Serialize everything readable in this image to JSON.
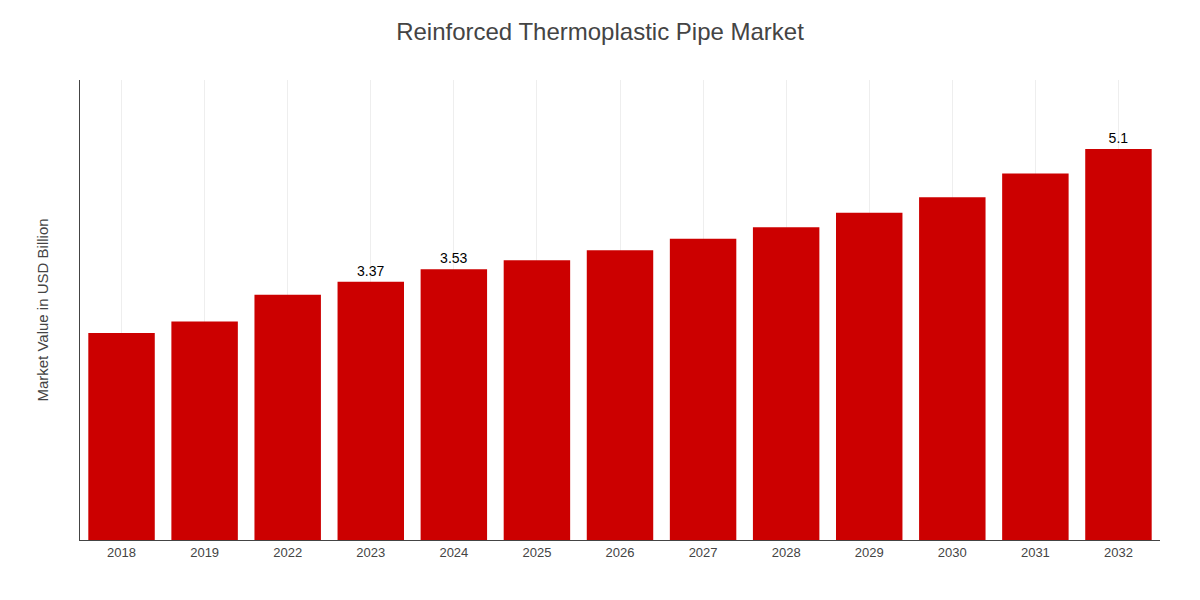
{
  "chart_data": {
    "type": "bar",
    "title": "Reinforced Thermoplastic Pipe Market",
    "ylabel": "Market Value in USD Billion",
    "categories": [
      "2018",
      "2019",
      "2022",
      "2023",
      "2024",
      "2025",
      "2026",
      "2027",
      "2028",
      "2029",
      "2030",
      "2031",
      "2032"
    ],
    "values": [
      2.7,
      2.85,
      3.2,
      3.37,
      3.53,
      3.65,
      3.78,
      3.93,
      4.08,
      4.27,
      4.47,
      4.78,
      5.1
    ],
    "value_labels": [
      null,
      null,
      null,
      "3.37",
      "3.53",
      null,
      null,
      null,
      null,
      null,
      null,
      null,
      "5.1"
    ],
    "data_labels": true,
    "color": "#CC0000",
    "ylim": [
      0,
      6.0
    ],
    "grid": true,
    "tick_labels": "x"
  }
}
